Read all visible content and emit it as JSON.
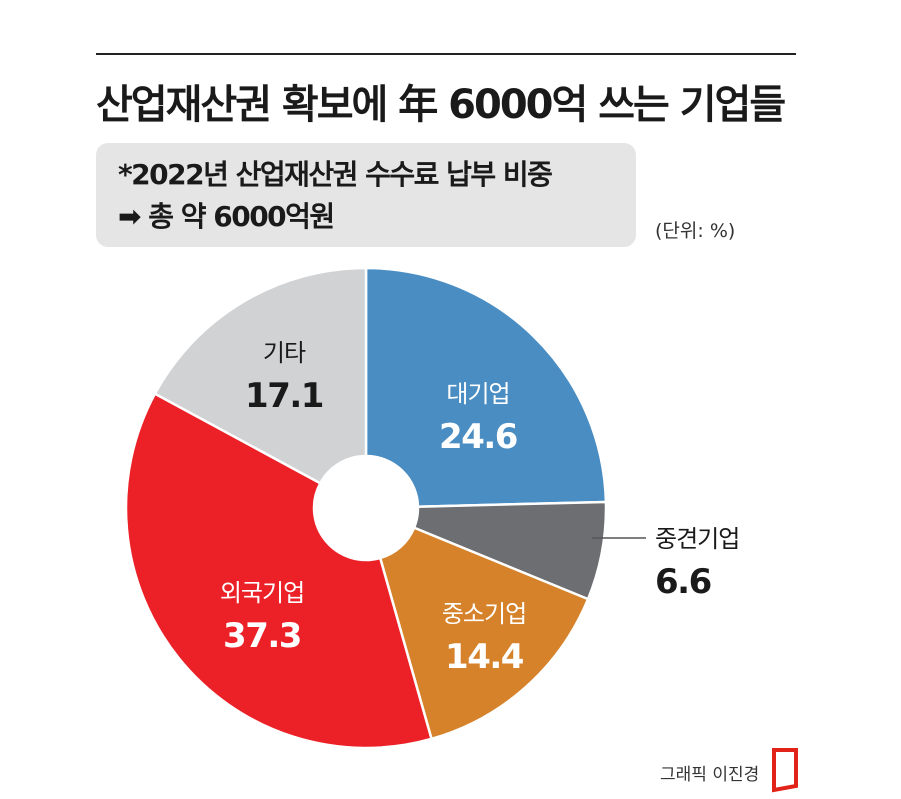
{
  "title": "산업재산권 확보에 年 6000억 쓰는 기업들",
  "note": {
    "line1": "*2022년 산업재산권 수수료 납부 비중",
    "arrow": "➡",
    "line2": "총 약 6000억원"
  },
  "unit_label": "(단위: %)",
  "credit": "그래픽 이진경",
  "colors": {
    "large": "#4a8dc3",
    "midsize": "#6d6e71",
    "sme": "#d5822a",
    "foreign": "#ec2128",
    "other": "#d1d2d4"
  },
  "chart_data": {
    "type": "pie",
    "variant": "donut",
    "title": "산업재산권 확보에 年 6000억 쓰는 기업들",
    "subtitle": "*2022년 산업재산권 수수료 납부 비중 ➡ 총 약 6000억원",
    "unit": "%",
    "slices": [
      {
        "key": "large",
        "label": "대기업",
        "value": 24.6
      },
      {
        "key": "midsize",
        "label": "중견기업",
        "value": 6.6
      },
      {
        "key": "sme",
        "label": "중소기업",
        "value": 14.4
      },
      {
        "key": "foreign",
        "label": "외국기업",
        "value": 37.3
      },
      {
        "key": "other",
        "label": "기타",
        "value": 17.1
      }
    ]
  }
}
